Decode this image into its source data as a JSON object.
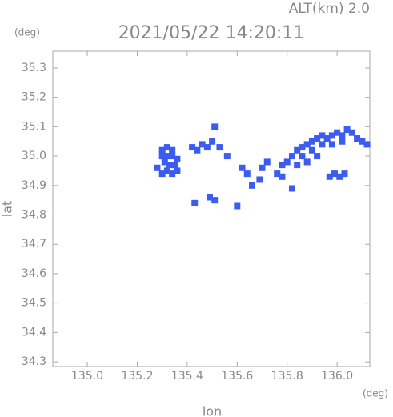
{
  "chart_data": {
    "type": "scatter",
    "title": "2021/05/22 14:20:11",
    "subtitle": "ALT(km) 2.0",
    "x_label": "lon",
    "y_label": "lat",
    "x_unit": "(deg)",
    "y_unit": "(deg)",
    "color": "#3c5cf0",
    "xlim": [
      134.862,
      136.131
    ],
    "ylim": [
      34.284,
      35.357
    ],
    "xticks": [
      {
        "value": 135.0,
        "label": "135.0"
      },
      135.2,
      135.4,
      135.6,
      135.8,
      {
        "value": 136.0,
        "label": "136.0"
      }
    ],
    "yticks": [
      34.3,
      34.4,
      34.5,
      34.6,
      34.7,
      34.8,
      34.9,
      {
        "value": 35.0,
        "label": "35.0"
      },
      35.1,
      35.2,
      35.3
    ],
    "x": [
      135.3,
      135.32,
      135.34,
      135.3,
      135.32,
      135.34,
      135.36,
      135.31,
      135.33,
      135.35,
      135.32,
      135.34,
      135.3,
      135.36,
      135.28,
      135.42,
      135.44,
      135.46,
      135.48,
      135.5,
      135.53,
      135.51,
      135.56,
      135.49,
      135.51,
      135.43,
      135.6,
      135.62,
      135.64,
      135.66,
      135.7,
      135.72,
      135.69,
      135.76,
      135.78,
      135.8,
      135.82,
      135.84,
      135.86,
      135.88,
      135.9,
      135.92,
      135.94,
      135.96,
      135.98,
      136.0,
      136.02,
      136.04,
      136.06,
      136.08,
      136.1,
      136.12,
      135.86,
      135.9,
      135.94,
      135.98,
      136.02,
      135.84,
      135.88,
      135.92,
      135.82,
      135.78,
      135.99,
      136.01,
      136.03,
      135.97
    ],
    "y": [
      35.02,
      35.03,
      35.02,
      35.0,
      35.0,
      35.0,
      34.99,
      34.98,
      34.97,
      34.97,
      34.95,
      34.94,
      34.94,
      34.95,
      34.96,
      35.03,
      35.02,
      35.04,
      35.03,
      35.05,
      35.03,
      35.1,
      35.0,
      34.86,
      34.85,
      34.84,
      34.83,
      34.96,
      34.94,
      34.9,
      34.96,
      34.98,
      34.92,
      34.94,
      34.97,
      34.98,
      35.0,
      35.02,
      35.03,
      35.04,
      35.05,
      35.06,
      35.07,
      35.06,
      35.07,
      35.08,
      35.07,
      35.09,
      35.08,
      35.06,
      35.05,
      35.04,
      35.0,
      35.02,
      35.04,
      35.04,
      35.05,
      34.97,
      34.98,
      35.0,
      34.89,
      34.93,
      34.94,
      34.93,
      34.94,
      34.93
    ]
  }
}
